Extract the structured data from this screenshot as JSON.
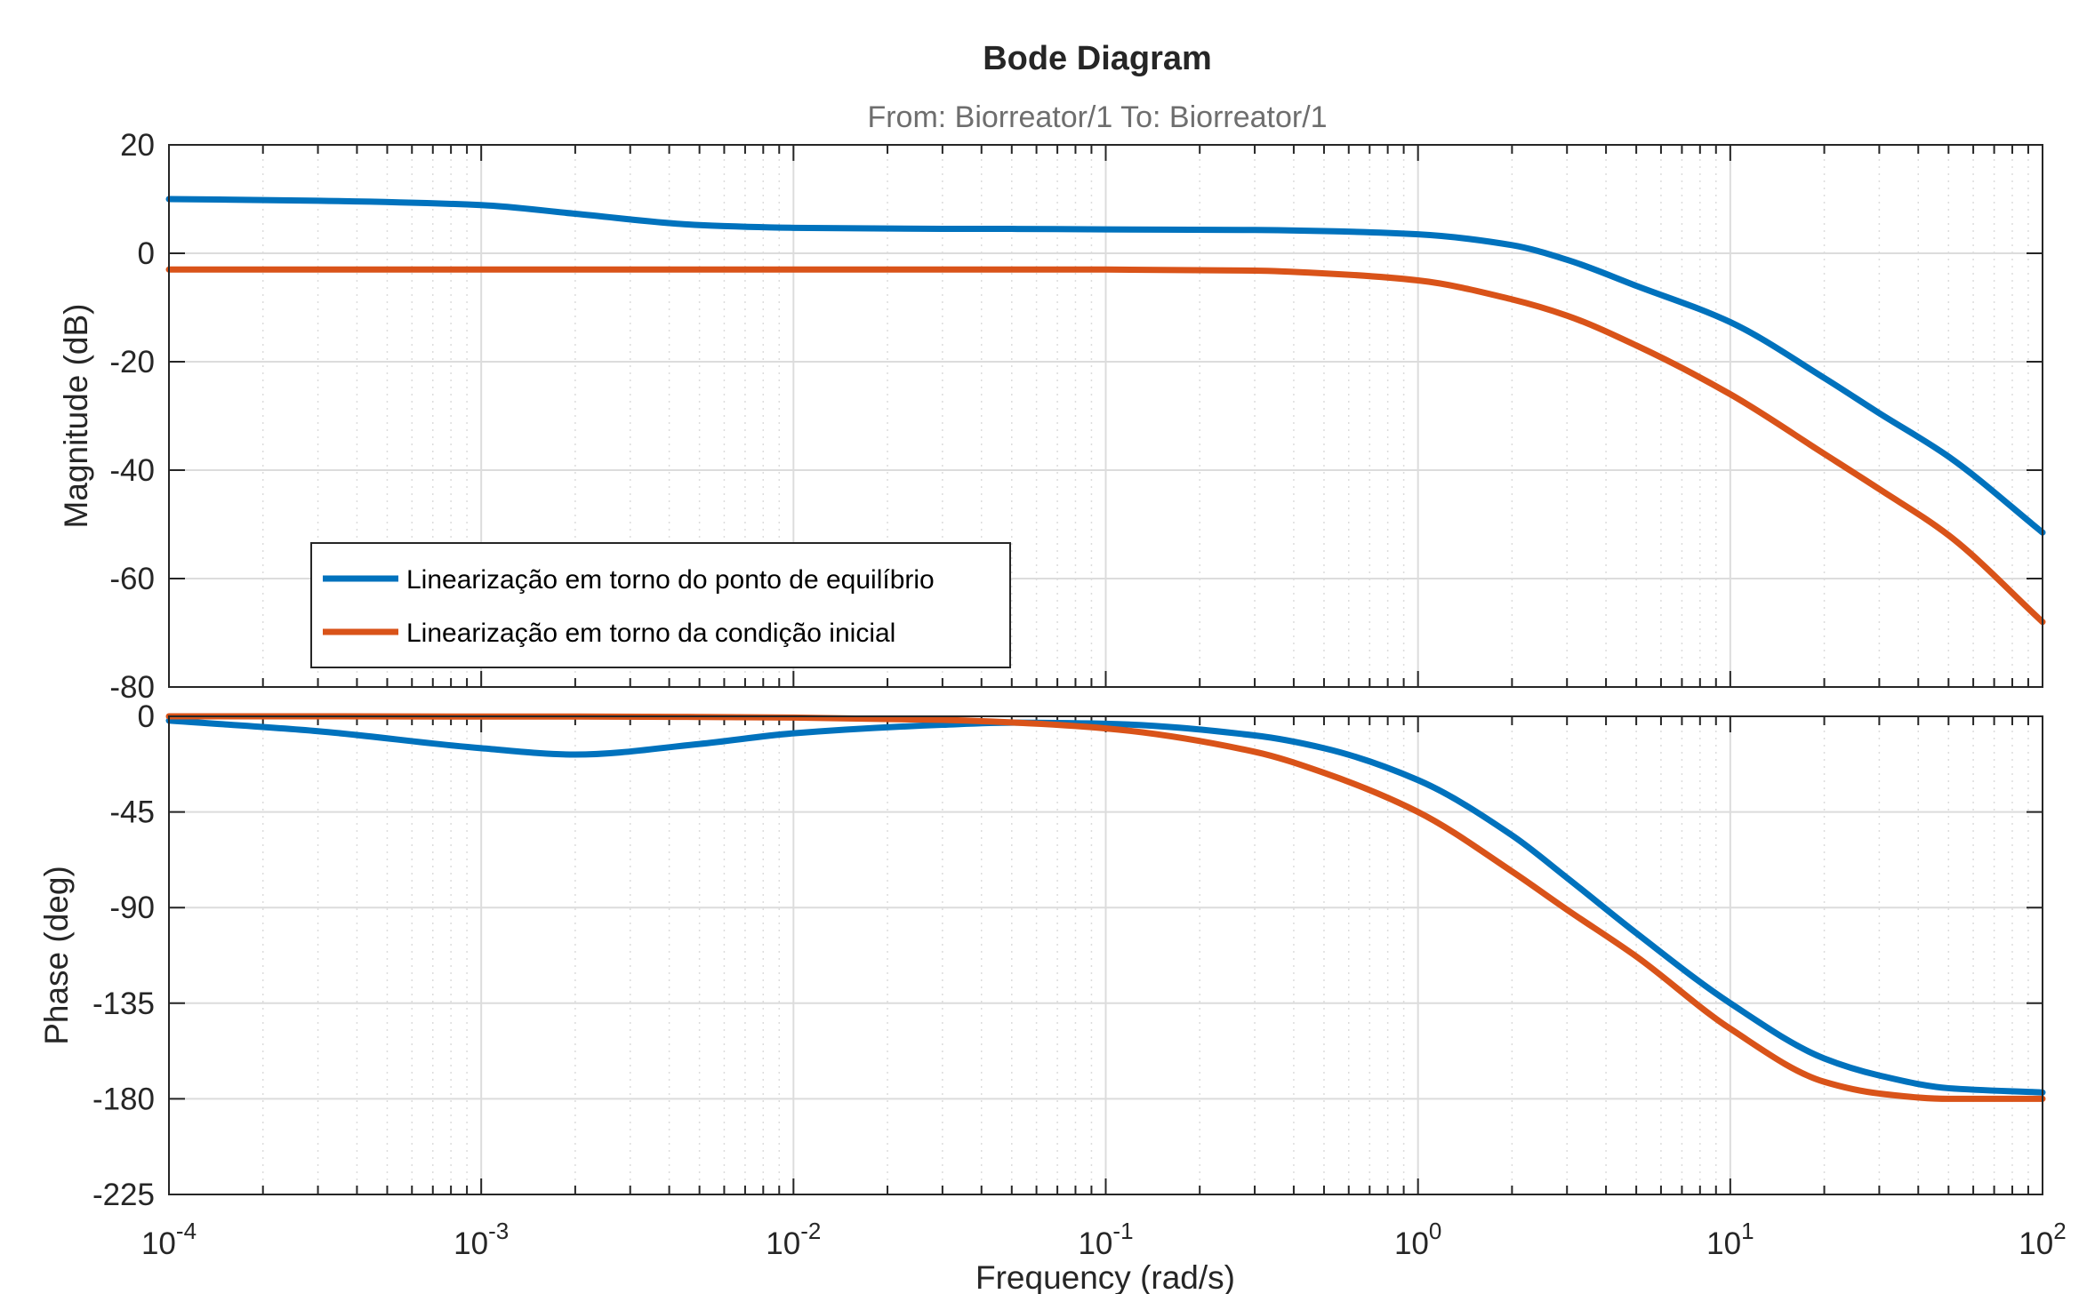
{
  "chart_data": {
    "type": "line",
    "title": "Bode Diagram",
    "subtitle": "From: Biorreator/1  To: Biorreator/1",
    "xlabel": "Frequency  (rad/s)",
    "x_scale": "log",
    "xlim": [
      0.0001,
      100
    ],
    "x_ticks": [
      {
        "base": "10",
        "exp": "-4"
      },
      {
        "base": "10",
        "exp": "-3"
      },
      {
        "base": "10",
        "exp": "-2"
      },
      {
        "base": "10",
        "exp": "-1"
      },
      {
        "base": "10",
        "exp": "0"
      },
      {
        "base": "10",
        "exp": "1"
      },
      {
        "base": "10",
        "exp": "2"
      }
    ],
    "grid": true,
    "legend_position": "bottom-left of magnitude panel",
    "x": [
      0.0001,
      0.0003,
      0.001,
      0.002,
      0.005,
      0.01,
      0.03,
      0.05,
      0.1,
      0.3,
      0.5,
      1,
      2,
      3,
      5,
      10,
      20,
      30,
      50,
      100
    ],
    "panels": [
      {
        "name": "magnitude",
        "ylabel": "Magnitude (dB)",
        "ylim": [
          -80,
          20
        ],
        "yticks": [
          "20",
          "0",
          "-20",
          "-40",
          "-60",
          "-80"
        ],
        "series": [
          {
            "name": "Linearização em torno do ponto de equilíbrio",
            "color": "#0072BD",
            "values": [
              10,
              9.7,
              8.9,
              7.3,
              5.2,
              4.7,
              4.5,
              4.5,
              4.4,
              4.3,
              4.1,
              3.5,
              1.5,
              -1.2,
              -6,
              -12.7,
              -23,
              -29.5,
              -37.5,
              -51.5
            ]
          },
          {
            "name": "Linearização em torno da condição inicial",
            "color": "#D95319",
            "values": [
              -3,
              -3,
              -3,
              -3,
              -3,
              -3,
              -3,
              -3,
              -3,
              -3.2,
              -3.7,
              -5,
              -8.5,
              -11.5,
              -17,
              -26,
              -37,
              -43.5,
              -52,
              -68
            ]
          }
        ]
      },
      {
        "name": "phase",
        "ylabel": "Phase (deg)",
        "ylim": [
          -225,
          0
        ],
        "yticks": [
          "0",
          "-45",
          "-90",
          "-135",
          "-180",
          "-225"
        ],
        "series": [
          {
            "name": "Linearização em torno do ponto de equilíbrio",
            "color": "#0072BD",
            "values": [
              -2,
              -7,
              -15,
              -18,
              -13,
              -8,
              -4,
              -3,
              -3.5,
              -9,
              -15,
              -30,
              -56,
              -76,
              -102,
              -135,
              -161,
              -169,
              -175,
              -177
            ]
          },
          {
            "name": "Linearização em torno da condição inicial",
            "color": "#D95319",
            "values": [
              0,
              0,
              -0.1,
              -0.1,
              -0.3,
              -0.6,
              -1.7,
              -2.9,
              -5.7,
              -16.7,
              -26.6,
              -45,
              -73,
              -91,
              -113,
              -147,
              -172,
              -177.5,
              -180,
              -180
            ]
          }
        ]
      }
    ]
  }
}
